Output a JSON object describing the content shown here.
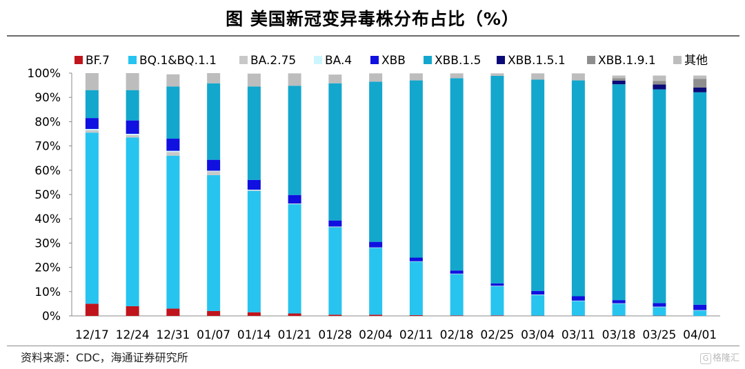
{
  "header": {
    "title": "图  美国新冠变异毒株分布占比（%）"
  },
  "footer": {
    "source": "资料来源：CDC，海通证券研究所"
  },
  "watermark": {
    "glyph": "G",
    "text": "格隆汇"
  },
  "chart_data": {
    "type": "bar",
    "stacked": true,
    "categories": [
      "12/17",
      "12/24",
      "12/31",
      "01/07",
      "01/14",
      "01/21",
      "01/28",
      "02/04",
      "02/11",
      "02/18",
      "02/25",
      "03/04",
      "03/11",
      "03/18",
      "03/25",
      "04/01"
    ],
    "y_ticks": [
      "0%",
      "10%",
      "20%",
      "30%",
      "40%",
      "50%",
      "60%",
      "70%",
      "80%",
      "90%",
      "100%"
    ],
    "ylim": [
      0,
      100
    ],
    "grid": false,
    "legend_position": "top",
    "series": [
      {
        "name": "BF.7",
        "color": "#c0141c",
        "values": [
          5.0,
          4.0,
          3.0,
          2.0,
          1.5,
          1.0,
          0.5,
          0.5,
          0.3,
          0.2,
          0.2,
          0.1,
          0.1,
          0.1,
          0.1,
          0.0
        ]
      },
      {
        "name": "BQ.1&BQ.1.1",
        "color": "#27c4f0",
        "values": [
          70.5,
          69.5,
          63.0,
          56.0,
          50.0,
          45.0,
          36.0,
          27.5,
          22.0,
          17.0,
          12.0,
          8.5,
          6.0,
          4.9,
          3.5,
          2.2
        ]
      },
      {
        "name": "BA.2.75",
        "color": "#c8c8c8",
        "values": [
          1.0,
          1.0,
          1.5,
          1.5,
          0.3,
          0.2,
          0.2,
          0.1,
          0.1,
          0.1,
          0.1,
          0.1,
          0.1,
          0.1,
          0.1,
          0.1
        ]
      },
      {
        "name": "BA.4",
        "color": "#cdf5fd",
        "values": [
          0.5,
          0.5,
          0.5,
          0.3,
          0.2,
          0.1,
          0.1,
          0.1,
          0.1,
          0.1,
          0.1,
          0.1,
          0.1,
          0.1,
          0.1,
          0.1
        ]
      },
      {
        "name": "XBB",
        "color": "#1010e0",
        "values": [
          4.5,
          5.5,
          5.0,
          4.5,
          4.0,
          3.5,
          2.5,
          2.3,
          1.5,
          1.3,
          1.0,
          1.5,
          1.8,
          1.3,
          1.5,
          2.2
        ]
      },
      {
        "name": "XBB.1.5",
        "color": "#13a7cd",
        "values": [
          11.5,
          12.5,
          21.5,
          31.5,
          38.5,
          45.0,
          56.5,
          66.0,
          73.0,
          79.2,
          85.5,
          87.0,
          88.9,
          88.9,
          88.0,
          87.5
        ]
      },
      {
        "name": "XBB.1.5.1",
        "color": "#0a0a78",
        "values": [
          0.0,
          0.0,
          0.0,
          0.0,
          0.0,
          0.0,
          0.0,
          0.0,
          0.0,
          0.0,
          0.0,
          0.0,
          0.0,
          1.5,
          2.0,
          2.0
        ]
      },
      {
        "name": "XBB.1.9.1",
        "color": "#8e8e8e",
        "values": [
          0.0,
          0.0,
          0.0,
          0.0,
          0.0,
          0.0,
          0.0,
          0.0,
          0.0,
          0.0,
          0.0,
          0.0,
          0.0,
          1.0,
          1.5,
          3.5
        ]
      },
      {
        "name": "其他",
        "color": "#bdbdbd",
        "values": [
          7.0,
          7.0,
          5.0,
          4.2,
          5.3,
          5.1,
          3.6,
          3.4,
          2.9,
          2.0,
          1.0,
          2.6,
          2.9,
          1.1,
          2.2,
          1.4
        ]
      }
    ]
  }
}
